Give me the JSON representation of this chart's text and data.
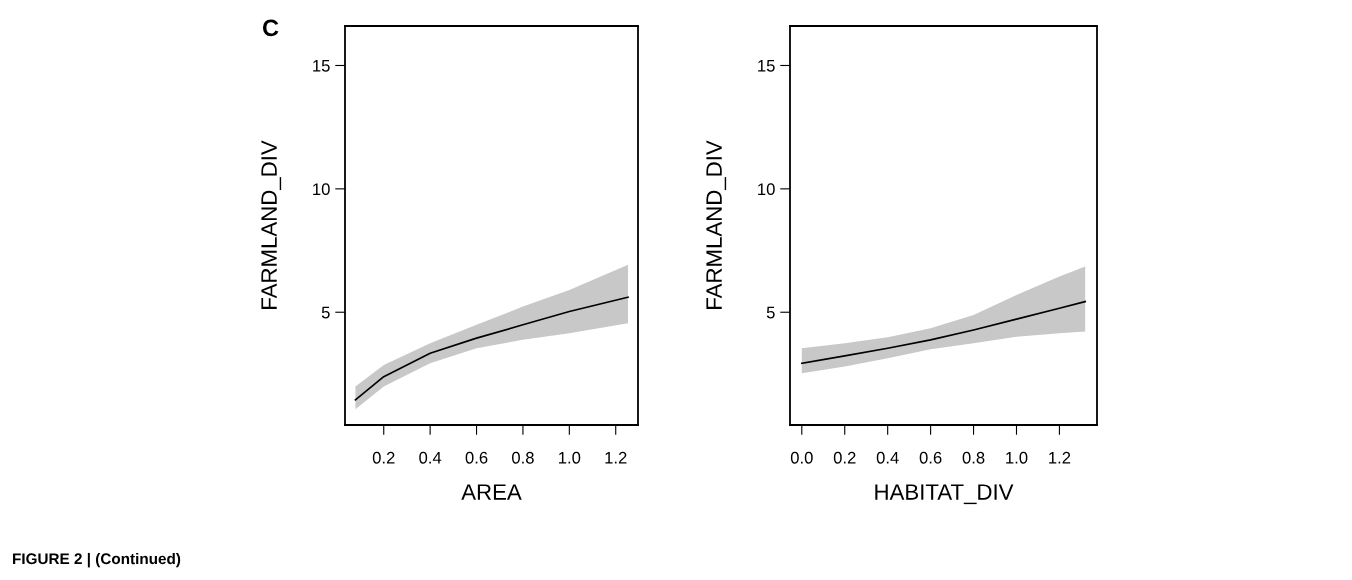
{
  "chart_data": [
    {
      "type": "line",
      "xlabel": "AREA",
      "ylabel": "FARMLAND_DIV",
      "annotations": [
        "C",
        "FIGURE 2 | (Continued)"
      ],
      "xlim": [
        0.033,
        1.296
      ],
      "ylim": [
        0.43,
        16.6
      ],
      "xticks": [
        {
          "value": 0.2,
          "label": "0.2"
        },
        {
          "value": 0.4,
          "label": "0.4"
        },
        {
          "value": 0.6,
          "label": "0.6"
        },
        {
          "value": 0.8,
          "label": "0.8"
        },
        {
          "value": 1.0,
          "label": "1.0"
        },
        {
          "value": 1.2,
          "label": "1.2"
        }
      ],
      "yticks": [
        5,
        10,
        15
      ],
      "grid": false,
      "legend": false,
      "series": [
        {
          "color": "#000000",
          "x": [
            0.078,
            0.2,
            0.4,
            0.6,
            0.8,
            1.0,
            1.253
          ],
          "values": [
            1.45,
            2.39,
            3.34,
            3.95,
            4.49,
            5.03,
            5.61
          ],
          "lower": [
            1.07,
            1.99,
            2.93,
            3.54,
            3.88,
            4.15,
            4.55
          ],
          "upper": [
            1.99,
            2.86,
            3.74,
            4.49,
            5.23,
            5.9,
            6.92
          ]
        }
      ]
    },
    {
      "type": "line",
      "xlabel": "HABITAT_DIV",
      "ylabel": "FARMLAND_DIV",
      "xlim": [
        -0.055,
        1.375
      ],
      "ylim": [
        0.43,
        16.6
      ],
      "xticks": [
        {
          "value": 0.0,
          "label": "0.0"
        },
        {
          "value": 0.2,
          "label": "0.2"
        },
        {
          "value": 0.4,
          "label": "0.4"
        },
        {
          "value": 0.6,
          "label": "0.6"
        },
        {
          "value": 0.8,
          "label": "0.8"
        },
        {
          "value": 1.0,
          "label": "1.0"
        },
        {
          "value": 1.2,
          "label": "1.2"
        }
      ],
      "yticks": [
        5,
        10,
        15
      ],
      "grid": false,
      "legend": false,
      "series": [
        {
          "color": "#000000",
          "x": [
            0.0,
            0.2,
            0.4,
            0.6,
            0.8,
            1.0,
            1.2,
            1.32
          ],
          "values": [
            2.93,
            3.23,
            3.54,
            3.88,
            4.28,
            4.72,
            5.16,
            5.43
          ],
          "lower": [
            2.53,
            2.8,
            3.14,
            3.5,
            3.74,
            4.01,
            4.15,
            4.22
          ],
          "upper": [
            3.54,
            3.74,
            3.99,
            4.35,
            4.89,
            5.7,
            6.45,
            6.85
          ]
        }
      ]
    }
  ]
}
